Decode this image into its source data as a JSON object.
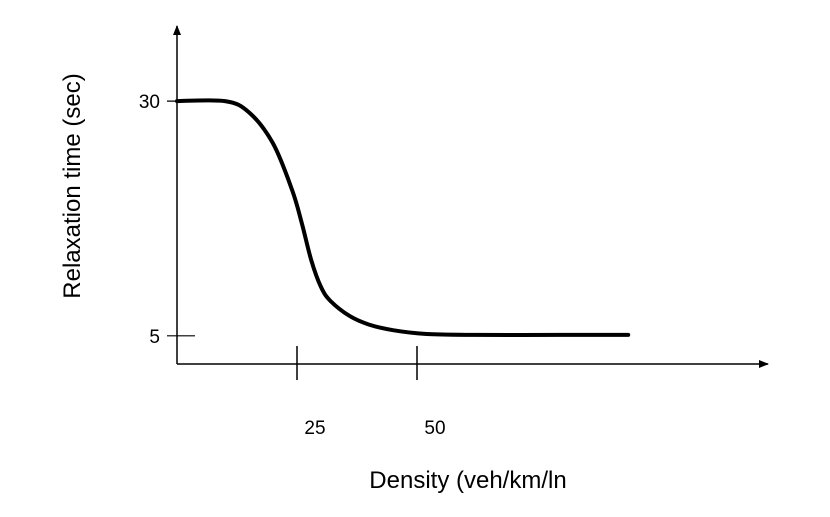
{
  "chart_data": {
    "type": "line",
    "xlabel": "Density (veh/km/ln",
    "ylabel": "Relaxation time (sec)",
    "x_ticks": [
      {
        "value": 25,
        "label": "25"
      },
      {
        "value": 50,
        "label": "50"
      }
    ],
    "y_ticks": [
      {
        "value": 5,
        "label": "5"
      },
      {
        "value": 30,
        "label": "30"
      }
    ],
    "xlim": [
      0,
      125
    ],
    "ylim": [
      2,
      38
    ],
    "grid": false,
    "legend": "none",
    "series": [
      {
        "x": [
          0,
          10,
          15,
          20,
          24,
          26,
          28,
          30,
          32,
          36,
          40,
          45,
          52,
          62,
          80,
          94
        ],
        "y": [
          30,
          30,
          28.8,
          25.5,
          20.5,
          17,
          13,
          10.2,
          8.7,
          7.1,
          6.2,
          5.6,
          5.2,
          5.1,
          5.1,
          5.1
        ],
        "color": "#000000"
      }
    ]
  }
}
